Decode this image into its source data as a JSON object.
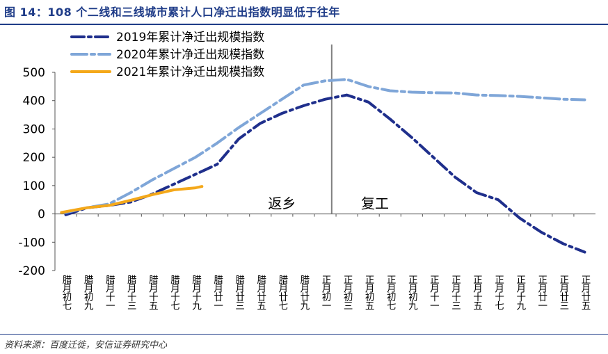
{
  "title": "图 14：108 个二线和三线城市累计人口净迁出指数明显低于往年",
  "source": "资料来源：百度迁徙，安信证券研究中心",
  "chart_data": {
    "type": "line",
    "categories": [
      "腊月初七",
      "腊月初九",
      "腊月十一",
      "腊月十三",
      "腊月十五",
      "腊月十七",
      "腊月十九",
      "腊月廿一",
      "腊月廿三",
      "腊月廿五",
      "腊月廿七",
      "腊月廿九",
      "正月初一",
      "正月初三",
      "正月初五",
      "正月初七",
      "正月初九",
      "正月十一",
      "正月十三",
      "正月十五",
      "正月十七",
      "正月十九",
      "正月廿一",
      "正月廿三",
      "正月廿五"
    ],
    "ylim": [
      -200,
      500
    ],
    "yticks": [
      -200,
      -100,
      0,
      100,
      200,
      300,
      400,
      500
    ],
    "series": [
      {
        "name": "2019年累计净迁出规模指数",
        "color": "#1f2f8c",
        "dash": "18 6 4 6",
        "points": [
          [
            0,
            -3
          ],
          [
            1,
            22
          ],
          [
            2,
            30
          ],
          [
            3,
            42
          ],
          [
            4,
            70
          ],
          [
            5,
            105
          ],
          [
            6,
            140
          ],
          [
            7,
            175
          ],
          [
            8,
            265
          ],
          [
            9,
            320
          ],
          [
            10,
            355
          ],
          [
            11,
            382
          ],
          [
            12,
            405
          ],
          [
            13,
            420
          ],
          [
            14,
            395
          ],
          [
            15,
            335
          ],
          [
            16,
            270
          ],
          [
            17,
            200
          ],
          [
            18,
            130
          ],
          [
            19,
            75
          ],
          [
            20,
            50
          ],
          [
            21,
            -15
          ],
          [
            22,
            -65
          ],
          [
            23,
            -105
          ],
          [
            24,
            -135
          ]
        ]
      },
      {
        "name": "2020年累计净迁出规模指数",
        "color": "#7fa6d8",
        "dash": "22 6 5 6",
        "points": [
          [
            0,
            5
          ],
          [
            1,
            22
          ],
          [
            2,
            35
          ],
          [
            3,
            75
          ],
          [
            4,
            120
          ],
          [
            5,
            160
          ],
          [
            6,
            200
          ],
          [
            7,
            250
          ],
          [
            8,
            305
          ],
          [
            9,
            355
          ],
          [
            10,
            405
          ],
          [
            11,
            455
          ],
          [
            12,
            470
          ],
          [
            13,
            475
          ],
          [
            14,
            450
          ],
          [
            15,
            435
          ],
          [
            16,
            430
          ],
          [
            17,
            428
          ],
          [
            18,
            427
          ],
          [
            19,
            420
          ],
          [
            20,
            418
          ],
          [
            21,
            415
          ],
          [
            22,
            410
          ],
          [
            23,
            405
          ],
          [
            24,
            403
          ]
        ]
      },
      {
        "name": "2021年累计净迁出规模指数",
        "color": "#f4a81a",
        "dash": "",
        "points": [
          [
            -0.2,
            5
          ],
          [
            0,
            8
          ],
          [
            1,
            22
          ],
          [
            2,
            30
          ],
          [
            3,
            48
          ],
          [
            4,
            68
          ],
          [
            5,
            85
          ],
          [
            6,
            92
          ],
          [
            6.3,
            97
          ]
        ]
      }
    ],
    "annotations": [
      {
        "text": "返乡",
        "x": 10,
        "y": 40
      },
      {
        "text": "复工",
        "x": 14.3,
        "y": 40
      }
    ],
    "divider_x": 12.3,
    "legend": "top-left"
  }
}
